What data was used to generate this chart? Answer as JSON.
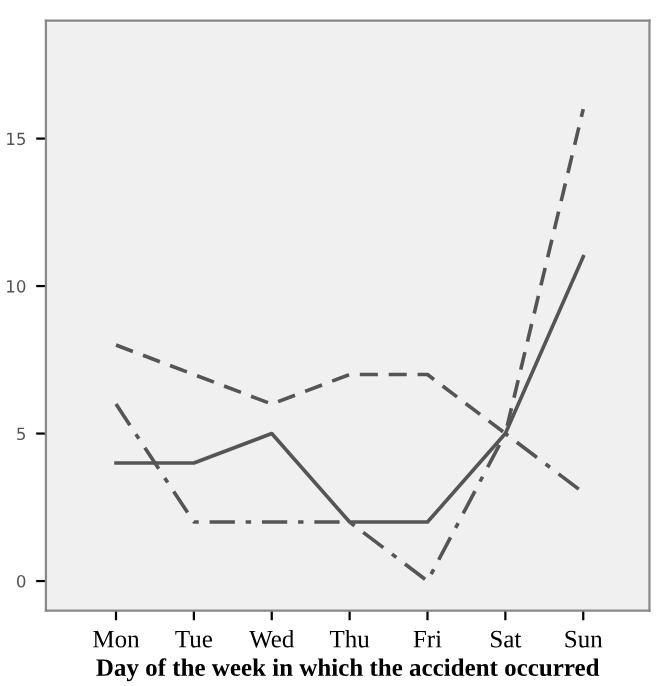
{
  "chart_data": {
    "type": "line",
    "xlabel": "Day of the week in which the accident occurred",
    "categories": [
      "Mon",
      "Tue",
      "Wed",
      "Thu",
      "Fri",
      "Sat",
      "Sun"
    ],
    "series": [
      {
        "color": "#555555",
        "line_style": "solid",
        "values": [
          4,
          4,
          5,
          2,
          2,
          5,
          11
        ]
      },
      {
        "color": "#555555",
        "line_style": "dashed",
        "values": [
          8,
          7,
          6,
          7,
          7,
          5,
          16
        ]
      },
      {
        "color": "#555555",
        "line_style": "dashdot",
        "values": [
          6,
          2,
          2,
          2,
          0,
          5,
          3
        ]
      }
    ],
    "ylim": [
      -1,
      19
    ],
    "yticks": [
      0,
      5,
      10,
      15
    ],
    "grid": false,
    "legend": false,
    "marker": "none"
  }
}
